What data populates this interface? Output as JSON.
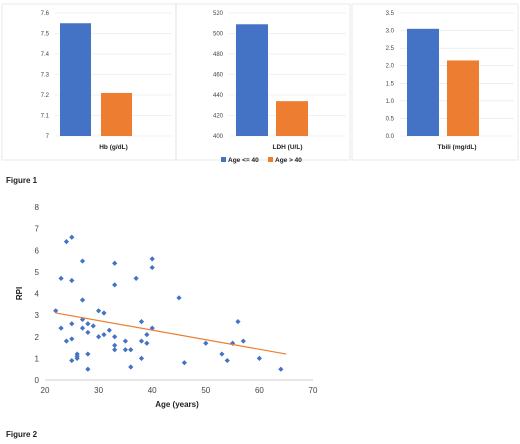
{
  "figure1_caption": "Figure 1",
  "figure2_caption": "Figure 2",
  "legend": [
    {
      "label": "Age <= 40",
      "color": "#4472C4"
    },
    {
      "label": "Age > 40",
      "color": "#ED7D31"
    }
  ],
  "chart_data": [
    {
      "type": "bar",
      "xlabel": "Hb (g/dL)",
      "ylim": [
        7,
        7.6
      ],
      "yticks": [
        "7",
        "7.1",
        "7.2",
        "7.3",
        "7.4",
        "7.5",
        "7.6"
      ],
      "series": [
        {
          "name": "Age <= 40",
          "values": [
            7.55
          ],
          "color": "#4472C4"
        },
        {
          "name": "Age > 40",
          "values": [
            7.21
          ],
          "color": "#ED7D31"
        }
      ]
    },
    {
      "type": "bar",
      "xlabel": "LDH (U/L)",
      "ylim": [
        400,
        520
      ],
      "yticks": [
        "400",
        "420",
        "440",
        "460",
        "480",
        "500",
        "520"
      ],
      "series": [
        {
          "name": "Age <= 40",
          "values": [
            509
          ],
          "color": "#4472C4"
        },
        {
          "name": "Age > 40",
          "values": [
            434
          ],
          "color": "#ED7D31"
        }
      ]
    },
    {
      "type": "bar",
      "xlabel": "Tbili (mg/dL)",
      "ylim": [
        0,
        3.5
      ],
      "yticks": [
        "0.0",
        "0.5",
        "1.0",
        "1.5",
        "2.0",
        "2.5",
        "3.0",
        "3.5"
      ],
      "series": [
        {
          "name": "Age <= 40",
          "values": [
            3.05
          ],
          "color": "#4472C4"
        },
        {
          "name": "Age > 40",
          "values": [
            2.15
          ],
          "color": "#ED7D31"
        }
      ]
    },
    {
      "type": "scatter",
      "xlabel": "Age (years)",
      "ylabel": "RPI",
      "xlim": [
        20,
        70
      ],
      "ylim": [
        0,
        8
      ],
      "xticks": [
        "20",
        "30",
        "40",
        "50",
        "60",
        "70"
      ],
      "yticks": [
        "0",
        "1",
        "2",
        "3",
        "4",
        "5",
        "6",
        "7",
        "8"
      ],
      "point_color": "#4472C4",
      "trendline": {
        "color": "#ED7D31",
        "x": [
          22,
          65
        ],
        "y": [
          3.1,
          1.2
        ]
      },
      "points": [
        [
          22,
          3.2
        ],
        [
          23,
          4.7
        ],
        [
          23,
          2.4
        ],
        [
          24,
          6.4
        ],
        [
          24,
          1.8
        ],
        [
          25,
          6.6
        ],
        [
          25,
          4.6
        ],
        [
          25,
          2.6
        ],
        [
          25,
          1.9
        ],
        [
          25,
          0.9
        ],
        [
          26,
          1.2
        ],
        [
          26,
          1.0
        ],
        [
          26,
          1.1
        ],
        [
          27,
          5.5
        ],
        [
          27,
          3.7
        ],
        [
          27,
          2.8
        ],
        [
          27,
          2.4
        ],
        [
          28,
          2.6
        ],
        [
          28,
          2.2
        ],
        [
          28,
          1.2
        ],
        [
          28,
          0.5
        ],
        [
          29,
          2.5
        ],
        [
          30,
          3.2
        ],
        [
          30,
          2.0
        ],
        [
          31,
          3.1
        ],
        [
          31,
          2.1
        ],
        [
          32,
          2.3
        ],
        [
          33,
          5.4
        ],
        [
          33,
          4.4
        ],
        [
          33,
          2.0
        ],
        [
          33,
          1.6
        ],
        [
          33,
          1.4
        ],
        [
          35,
          1.8
        ],
        [
          35,
          1.4
        ],
        [
          36,
          1.4
        ],
        [
          36,
          0.6
        ],
        [
          37,
          4.7
        ],
        [
          38,
          1.8
        ],
        [
          38,
          2.7
        ],
        [
          38,
          1.0
        ],
        [
          39,
          2.1
        ],
        [
          39,
          1.7
        ],
        [
          40,
          5.6
        ],
        [
          40,
          5.2
        ],
        [
          40,
          2.4
        ],
        [
          45,
          3.8
        ],
        [
          46,
          0.8
        ],
        [
          50,
          1.7
        ],
        [
          53,
          1.2
        ],
        [
          54,
          0.9
        ],
        [
          55,
          1.7
        ],
        [
          56,
          2.7
        ],
        [
          57,
          1.8
        ],
        [
          60,
          1.0
        ],
        [
          64,
          0.5
        ]
      ]
    }
  ]
}
